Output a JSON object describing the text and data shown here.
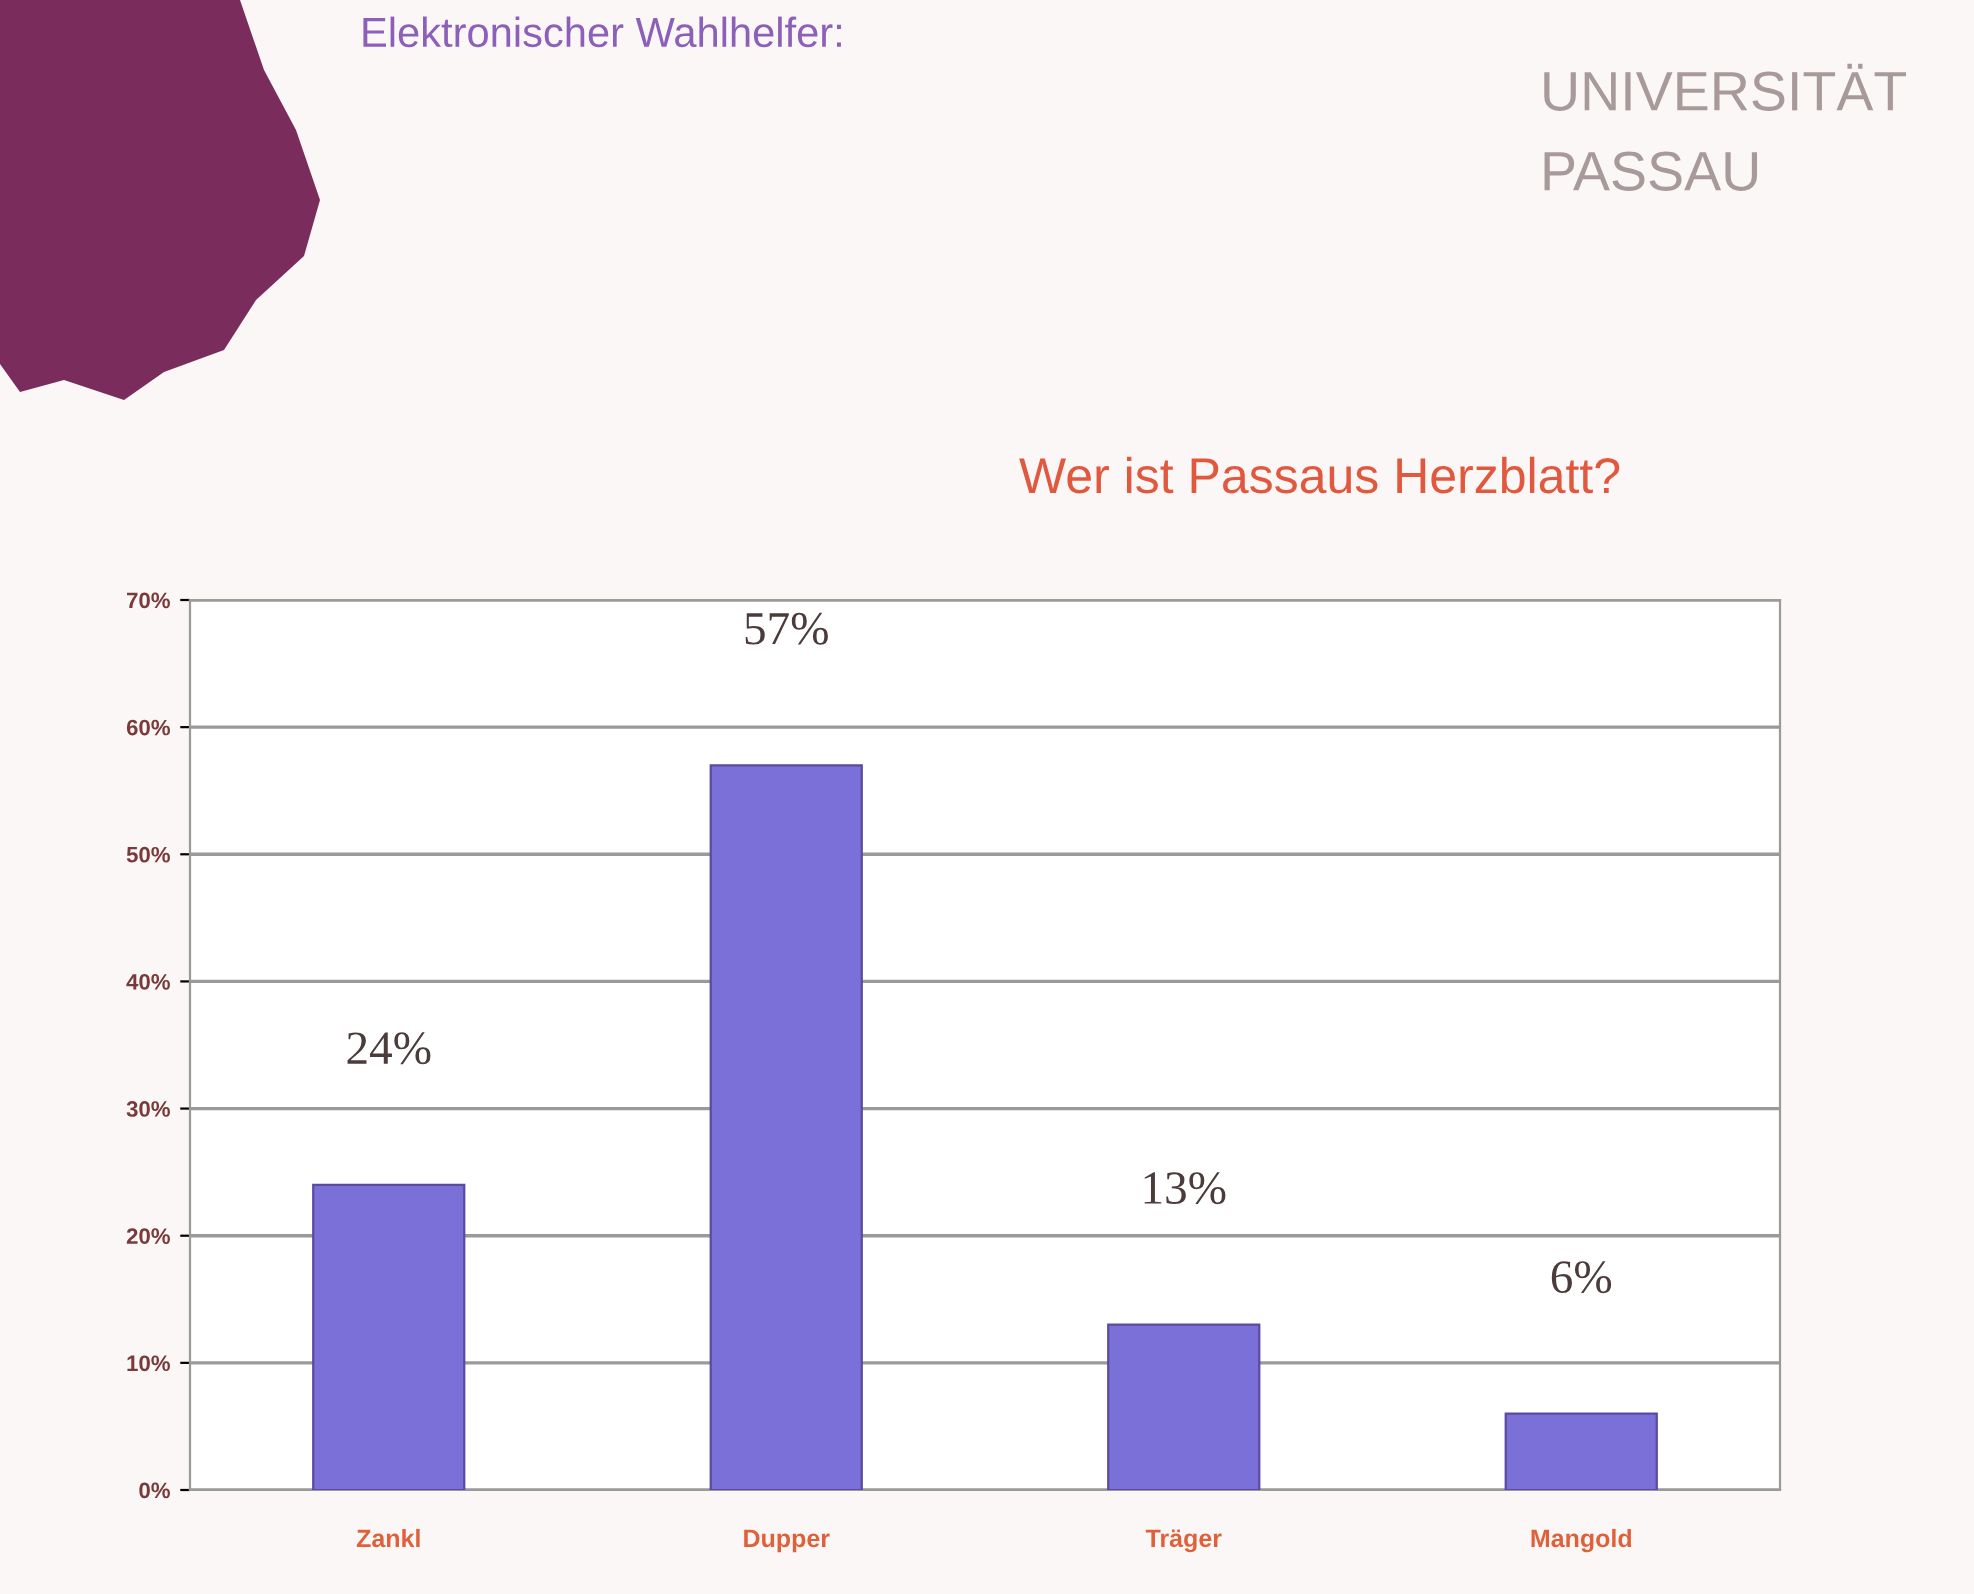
{
  "chart_data": {
    "type": "bar",
    "title": "Wer ist Passaus Herzblatt?",
    "categories": [
      "Zankl",
      "Dupper",
      "Träger",
      "Mangold"
    ],
    "values": [
      24,
      57,
      13,
      6
    ],
    "value_labels": [
      "24%",
      "57%",
      "13%",
      "6%"
    ],
    "color": "#7b70d8",
    "ylim": [
      0,
      70
    ],
    "yticks": [
      {
        "value": 0,
        "label": "0%"
      },
      {
        "value": 10,
        "label": "10%"
      },
      {
        "value": 20,
        "label": "20%"
      },
      {
        "value": 30,
        "label": "30%"
      },
      {
        "value": 40,
        "label": "40%"
      },
      {
        "value": 50,
        "label": "50%"
      },
      {
        "value": 60,
        "label": "60%"
      },
      {
        "value": 70,
        "label": "70%"
      }
    ],
    "grid": "y",
    "annotations": [
      "Elektronischer Wahlhelfer:",
      "UNIVERSITÄT",
      "PASSAU"
    ]
  }
}
